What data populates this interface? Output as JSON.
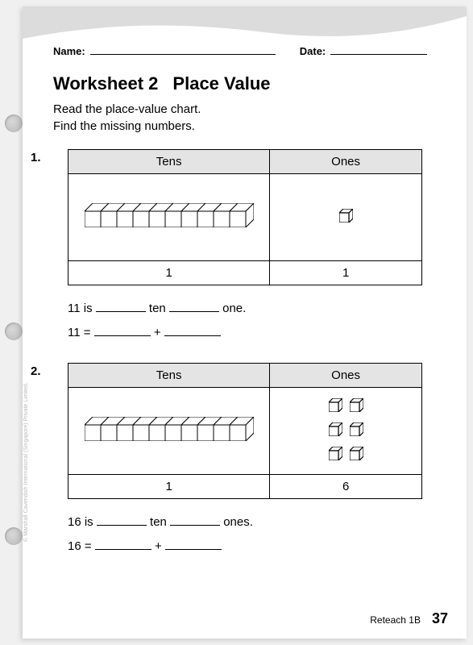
{
  "header": {
    "name_label": "Name:",
    "date_label": "Date:",
    "name_line_width": 230,
    "date_line_width": 120
  },
  "title": {
    "worksheet": "Worksheet 2",
    "topic": "Place Value"
  },
  "instructions": {
    "line1": "Read the place-value chart.",
    "line2": "Find the missing numbers."
  },
  "table_headers": {
    "tens": "Tens",
    "ones": "Ones"
  },
  "problems": [
    {
      "number": "1.",
      "tens_count": 1,
      "ones_count": 1,
      "tens_value": "1",
      "ones_value": "1",
      "sentence1_pre": "11 is ",
      "sentence1_mid": " ten ",
      "sentence1_post": " one.",
      "sentence2_pre": "11 = ",
      "sentence2_op": " + "
    },
    {
      "number": "2.",
      "tens_count": 1,
      "ones_count": 6,
      "tens_value": "1",
      "ones_value": "6",
      "sentence1_pre": "16 is ",
      "sentence1_mid": " ten ",
      "sentence1_post": " ones.",
      "sentence2_pre": "16 = ",
      "sentence2_op": " + "
    }
  ],
  "blanks": {
    "short": 62,
    "med": 70
  },
  "footer": {
    "book": "Reteach 1B",
    "page": "37"
  },
  "copyright": "© Marshall Cavendish International (Singapore) Private Limited.",
  "colors": {
    "page_bg": "#ffffff",
    "header_bg": "#e4e4e4",
    "border": "#000000",
    "swoosh": "#d9d9d9"
  },
  "cube": {
    "unit_size": 18,
    "rod_unit": 22,
    "stroke": "#000000",
    "fill": "#ffffff"
  }
}
